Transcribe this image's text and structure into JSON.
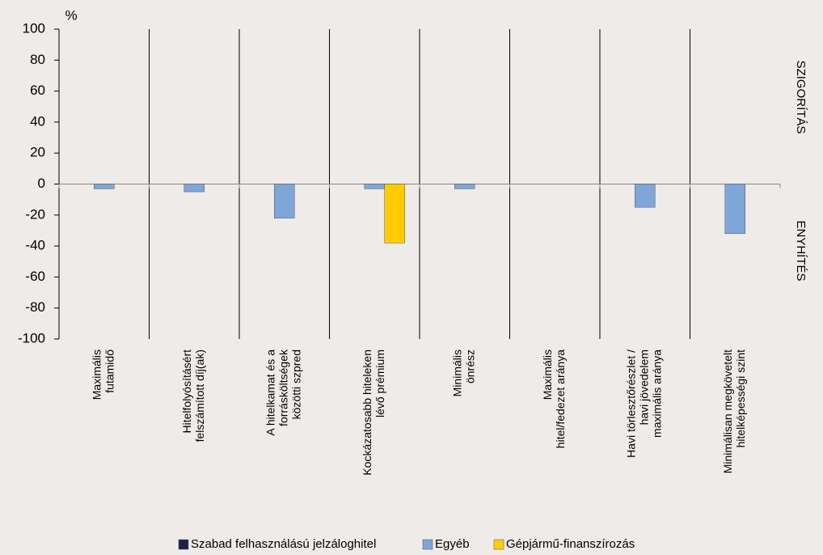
{
  "chart_data": {
    "type": "bar",
    "unit": "%",
    "upper_label": "SZIGORÍTÁS",
    "lower_label": "ENYHÍTÉS",
    "categories": [
      [
        "Maximális",
        "futamidő"
      ],
      [
        "Hitelfolyósításért",
        "felszámított díj(ak)"
      ],
      [
        "A hitelkamat és a",
        "forrásköltségek",
        "közötti szpred"
      ],
      [
        "Kockázatosabb hiteleken",
        "lévő prémium"
      ],
      [
        "Minimális",
        "önrész"
      ],
      [
        "Maximális",
        "hitel/fedezet aránya"
      ],
      [
        "Havi törlesztőrészlet /",
        "havi jövedelem",
        "maximális aránya"
      ],
      [
        "Minimálisan megkövetelt",
        "hitelképességi szint"
      ]
    ],
    "series": [
      {
        "name": "Szabad felhasználású jelzáloghitel",
        "color": "#1f1f4f",
        "values": [
          null,
          null,
          null,
          null,
          null,
          null,
          null,
          null
        ]
      },
      {
        "name": "Egyéb",
        "color": "#7fa6d8",
        "values": [
          -3,
          -5,
          -22,
          -3,
          -3,
          null,
          -15,
          -32
        ]
      },
      {
        "name": "Gépjármű-finanszírozás",
        "color": "#ffcc00",
        "values": [
          null,
          null,
          null,
          -38,
          null,
          null,
          null,
          null
        ]
      }
    ],
    "ylim": [
      -100,
      100
    ],
    "yticks": [
      -100,
      -80,
      -60,
      -40,
      -20,
      0,
      20,
      40,
      60,
      80,
      100
    ],
    "legend": "bottom"
  }
}
